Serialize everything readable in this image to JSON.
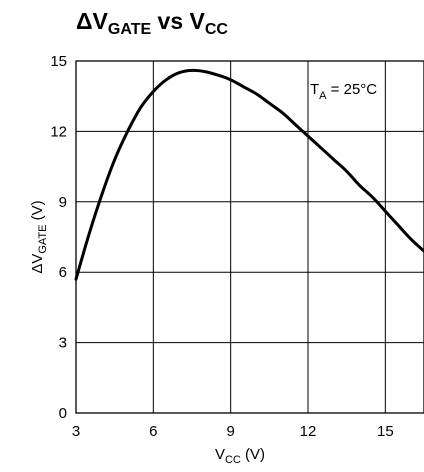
{
  "chart_data": {
    "type": "line",
    "title": {
      "prefix": "ΔV",
      "sub1": "GATE",
      "mid": " vs V",
      "sub2": "CC"
    },
    "xlabel": {
      "main": "V",
      "sub": "CC",
      "suffix": " (V)"
    },
    "ylabel": {
      "main": "ΔV",
      "sub": "GATE",
      "suffix": " (V)"
    },
    "annotation": {
      "main": "T",
      "sub": "A",
      "suffix": " = 25°C"
    },
    "xlim": [
      3,
      16.5
    ],
    "ylim": [
      0,
      15
    ],
    "xticks": [
      3,
      6,
      9,
      12,
      15
    ],
    "yticks": [
      0,
      3,
      6,
      9,
      12,
      15
    ],
    "x_tick_labels": [
      "3",
      "6",
      "9",
      "12",
      "15"
    ],
    "y_tick_labels": [
      "0",
      "3",
      "6",
      "9",
      "12",
      "15"
    ],
    "grid": true,
    "colors": {
      "line": "#000000",
      "grid": "#000000",
      "background": "#ffffff"
    },
    "series": [
      {
        "x": [
          3.0,
          3.5,
          4.0,
          4.5,
          5.0,
          5.5,
          6.0,
          6.5,
          7.0,
          7.5,
          8.0,
          8.5,
          9.0,
          9.5,
          10.0,
          10.5,
          11.0,
          11.5,
          12.0,
          12.5,
          13.0,
          13.5,
          14.0,
          14.5,
          15.0,
          15.5,
          16.0,
          16.5
        ],
        "y": [
          5.7,
          7.6,
          9.3,
          10.8,
          12.0,
          13.0,
          13.7,
          14.2,
          14.5,
          14.6,
          14.55,
          14.4,
          14.2,
          13.9,
          13.6,
          13.2,
          12.8,
          12.3,
          11.8,
          11.3,
          10.8,
          10.3,
          9.7,
          9.2,
          8.6,
          8.0,
          7.4,
          6.9
        ]
      }
    ]
  }
}
